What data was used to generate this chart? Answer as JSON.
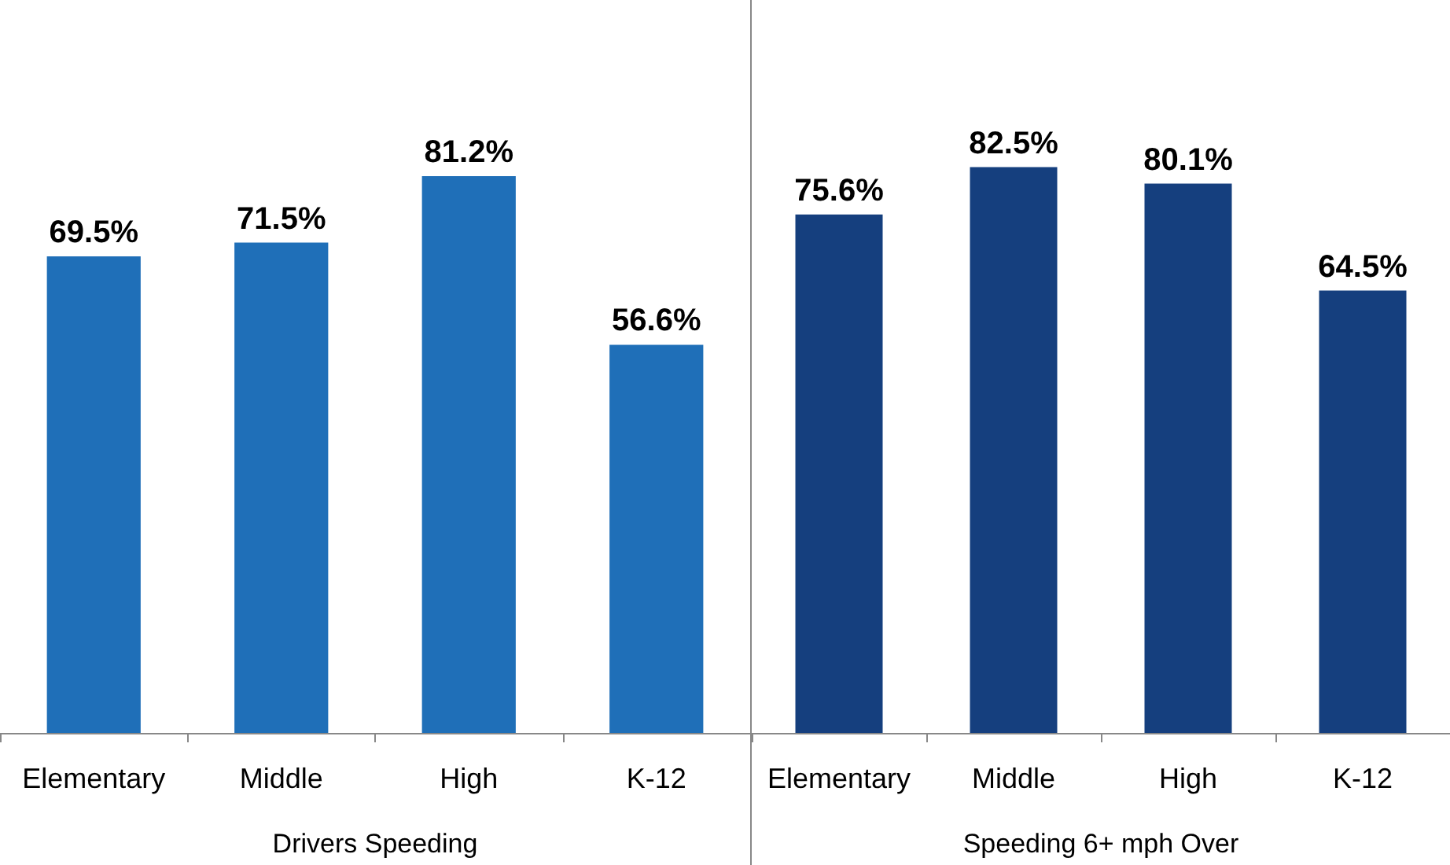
{
  "chart_data": [
    {
      "type": "bar",
      "xlabel": "Drivers Speeding",
      "categories": [
        "Elementary",
        "Middle",
        "High",
        "K-12"
      ],
      "values": [
        69.5,
        71.5,
        81.2,
        56.6
      ],
      "value_labels": [
        "69.5%",
        "71.5%",
        "81.2%",
        "56.6%"
      ],
      "color": "#1f6fb8",
      "tick_labels": "x",
      "grid": false
    },
    {
      "type": "bar",
      "xlabel": "Speeding 6+ mph Over",
      "categories": [
        "Elementary",
        "Middle",
        "High",
        "K-12"
      ],
      "values": [
        75.6,
        82.5,
        80.1,
        64.5
      ],
      "value_labels": [
        "75.6%",
        "82.5%",
        "80.1%",
        "64.5%"
      ],
      "color": "#153f7e",
      "tick_labels": "x",
      "grid": false
    }
  ]
}
